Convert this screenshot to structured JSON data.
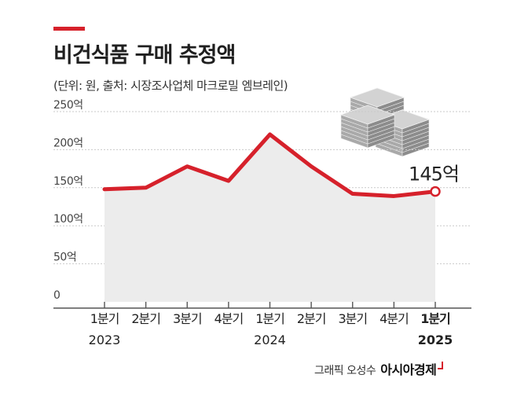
{
  "title": "비건식품 구매 추정액",
  "subtitle": "(단위: 원, 출처: 시장조사업체 마크로밀 엠브레인)",
  "credit": {
    "byline": "그래픽 오성수",
    "brand": "아시아경제"
  },
  "chart_data": {
    "type": "area",
    "title": "비건식품 구매 추정액",
    "subtitle": "(단위: 원, 출처: 시장조사업체 마크로밀 엠브레인)",
    "unit": "억",
    "categories": [
      "1분기",
      "2분기",
      "3분기",
      "4분기",
      "1분기",
      "2분기",
      "3분기",
      "4분기",
      "1분기"
    ],
    "years": [
      "2023",
      "",
      "",
      "",
      "2024",
      "",
      "",
      "",
      "2025"
    ],
    "series": [
      {
        "name": "구매 추정액",
        "values": [
          148,
          150,
          178,
          159,
          220,
          178,
          142,
          139,
          145
        ]
      }
    ],
    "yticks": [
      "250억",
      "200억",
      "150억",
      "100억",
      "50억",
      "0"
    ],
    "ylim": [
      0,
      250
    ],
    "grid": true,
    "annotation": {
      "index": 8,
      "text": "145억"
    }
  }
}
